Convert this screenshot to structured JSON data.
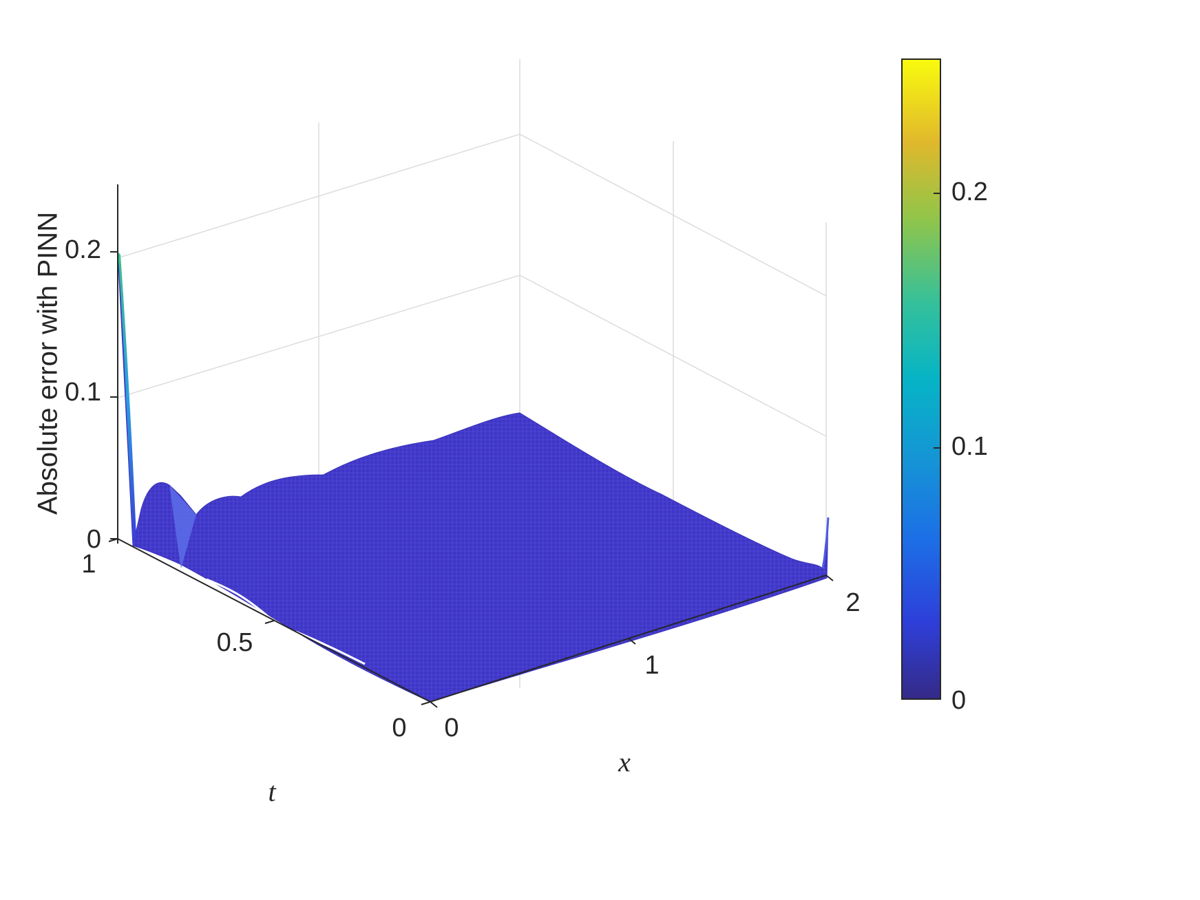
{
  "chart_data": {
    "type": "surface",
    "title": "",
    "xlabel": "x",
    "ylabel": "t",
    "zlabel": "Absolute error with PINN",
    "xlim": [
      0,
      2
    ],
    "ylim": [
      0,
      1
    ],
    "zlim": [
      0,
      0.25
    ],
    "x_ticks": [
      "0",
      "1",
      "2"
    ],
    "y_ticks": [
      "0",
      "0.5",
      "1"
    ],
    "z_ticks": [
      "0",
      "0.1",
      "0.2"
    ],
    "colorbar": {
      "range": [
        0,
        0.26
      ],
      "ticks": [
        "0",
        "0.1",
        "0.2"
      ],
      "colormap": "parula"
    },
    "grid": true,
    "view": "3d-isometric",
    "surface_color": "#3f36c8",
    "peak_error": 0.21,
    "peak_location": {
      "x": 0,
      "t": 1
    },
    "surface_profile": {
      "x": [
        0,
        0.25,
        0.5,
        0.75,
        1.0,
        1.25,
        1.5,
        1.75,
        2.0
      ],
      "t": [
        0,
        0.25,
        0.5,
        0.75,
        1.0
      ],
      "approx_max_error": 0.025
    }
  }
}
